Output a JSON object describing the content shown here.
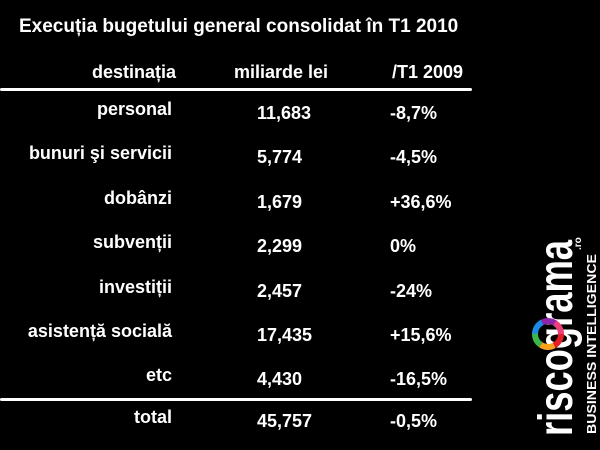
{
  "title": "Execuția bugetului general consolidat în T1 2010",
  "headers": {
    "category": "destinația",
    "value": "miliarde lei",
    "change": "/T1 2009"
  },
  "chart_data": {
    "type": "table",
    "title": "Execuția bugetului general consolidat în T1 2010",
    "columns": [
      "destinația",
      "miliarde lei",
      "/T1 2009"
    ],
    "rows": [
      {
        "category": "personal",
        "value": "11,683",
        "change": "-8,7%"
      },
      {
        "category": "bunuri şi servicii",
        "value": "5,774",
        "change": "-4,5%"
      },
      {
        "category": "dobânzi",
        "value": "1,679",
        "change": "+36,6%"
      },
      {
        "category": "subvenții",
        "value": "2,299",
        "change": "0%"
      },
      {
        "category": "investiții",
        "value": "2,457",
        "change": "-24%"
      },
      {
        "category": "asistență socială",
        "value": "17,435",
        "change": "+15,6%"
      },
      {
        "category": "etc",
        "value": "4,430",
        "change": "-16,5%"
      }
    ],
    "total": {
      "category": "total",
      "value": "45,757",
      "change": "-0,5%"
    }
  },
  "logo": {
    "text": "riscograma",
    "suffix": ".ro",
    "tagline": "BUSINESS INTELLIGENCE"
  },
  "colors": {
    "background": "#000000",
    "text": "#ffffff"
  }
}
